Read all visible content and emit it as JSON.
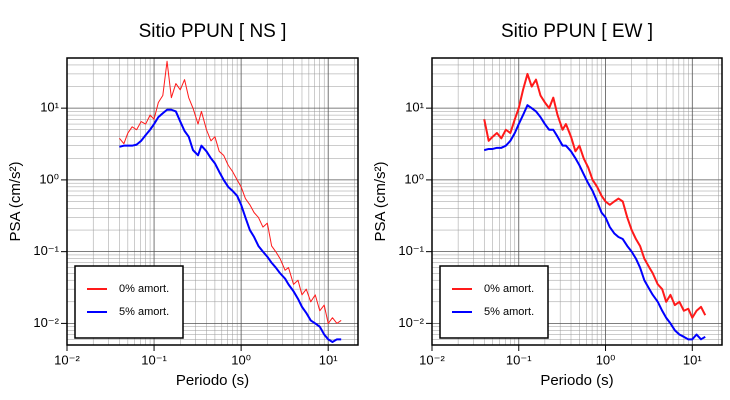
{
  "chart_data": [
    {
      "type": "line",
      "title": "Sitio PPUN [ NS ]",
      "xlabel": "Periodo (s)",
      "ylabel": "PSA (cm/s²)",
      "xscale": "log",
      "yscale": "log",
      "grid": true,
      "legend": "lower left",
      "xlim": [
        0.01,
        22
      ],
      "ylim": [
        0.005,
        50
      ],
      "xticks": [
        {
          "value": 0.01,
          "label": "10⁻²"
        },
        {
          "value": 0.1,
          "label": "10⁻¹"
        },
        {
          "value": 1,
          "label": "10⁰"
        },
        {
          "value": 10,
          "label": "10¹"
        }
      ],
      "yticks": [
        {
          "value": 0.01,
          "label": "10⁻²"
        },
        {
          "value": 0.1,
          "label": "10⁻¹"
        },
        {
          "value": 1,
          "label": "10⁰"
        },
        {
          "value": 10,
          "label": "10¹"
        }
      ],
      "x": [
        0.04,
        0.045,
        0.05,
        0.056,
        0.063,
        0.071,
        0.08,
        0.09,
        0.1,
        0.112,
        0.126,
        0.141,
        0.158,
        0.178,
        0.2,
        0.224,
        0.25,
        0.28,
        0.32,
        0.35,
        0.4,
        0.45,
        0.5,
        0.56,
        0.63,
        0.71,
        0.8,
        0.9,
        1.0,
        1.12,
        1.26,
        1.41,
        1.58,
        1.78,
        2.0,
        2.24,
        2.5,
        2.8,
        3.2,
        3.5,
        4.0,
        4.5,
        5.0,
        5.6,
        6.3,
        7.1,
        8.0,
        9.0,
        10,
        11.2,
        12.6,
        14.1
      ],
      "series": [
        {
          "name": "0% amort.",
          "color": "#ff1a1a",
          "width": 1,
          "values": [
            3.8,
            3.2,
            4.5,
            5.5,
            5,
            6.5,
            6,
            8,
            7,
            12,
            15,
            45,
            14,
            22,
            18,
            25,
            14,
            10,
            6,
            9,
            5,
            3.5,
            4,
            2.5,
            2.2,
            1.6,
            1.3,
            1.0,
            0.8,
            0.55,
            0.45,
            0.35,
            0.3,
            0.22,
            0.25,
            0.12,
            0.1,
            0.08,
            0.055,
            0.06,
            0.035,
            0.04,
            0.025,
            0.03,
            0.02,
            0.025,
            0.015,
            0.018,
            0.01,
            0.012,
            0.01,
            0.011
          ]
        },
        {
          "name": "5% amort.",
          "color": "#0000ff",
          "width": 2,
          "values": [
            2.9,
            3,
            3,
            3,
            3.1,
            3.5,
            4.2,
            5,
            6,
            7.5,
            8.5,
            9.5,
            9.5,
            9,
            6.5,
            4.8,
            4,
            2.6,
            2.2,
            3,
            2.5,
            2,
            1.7,
            1.3,
            1,
            0.8,
            0.7,
            0.6,
            0.45,
            0.3,
            0.2,
            0.16,
            0.12,
            0.1,
            0.085,
            0.07,
            0.06,
            0.05,
            0.042,
            0.035,
            0.028,
            0.022,
            0.017,
            0.014,
            0.011,
            0.01,
            0.009,
            0.007,
            0.006,
            0.0055,
            0.006,
            0.006
          ]
        }
      ]
    },
    {
      "type": "line",
      "title": "Sitio PPUN [ EW ]",
      "xlabel": "Periodo (s)",
      "ylabel": "PSA (cm/s²)",
      "xscale": "log",
      "yscale": "log",
      "grid": true,
      "legend": "lower left",
      "xlim": [
        0.01,
        22
      ],
      "ylim": [
        0.005,
        50
      ],
      "xticks": [
        {
          "value": 0.01,
          "label": "10⁻²"
        },
        {
          "value": 0.1,
          "label": "10⁻¹"
        },
        {
          "value": 1,
          "label": "10⁰"
        },
        {
          "value": 10,
          "label": "10¹"
        }
      ],
      "yticks": [
        {
          "value": 0.01,
          "label": "10⁻²"
        },
        {
          "value": 0.1,
          "label": "10⁻¹"
        },
        {
          "value": 1,
          "label": "10⁰"
        },
        {
          "value": 10,
          "label": "10¹"
        }
      ],
      "x": [
        0.04,
        0.045,
        0.05,
        0.056,
        0.063,
        0.071,
        0.08,
        0.09,
        0.1,
        0.112,
        0.126,
        0.141,
        0.158,
        0.178,
        0.2,
        0.224,
        0.25,
        0.28,
        0.32,
        0.35,
        0.4,
        0.45,
        0.5,
        0.56,
        0.63,
        0.71,
        0.8,
        0.9,
        1.0,
        1.12,
        1.26,
        1.41,
        1.58,
        1.78,
        2.0,
        2.24,
        2.5,
        2.8,
        3.2,
        3.5,
        4.0,
        4.5,
        5.0,
        5.6,
        6.3,
        7.1,
        8.0,
        9.0,
        10,
        11.2,
        12.6,
        14.1
      ],
      "series": [
        {
          "name": "0% amort.",
          "color": "#ff1a1a",
          "width": 2,
          "values": [
            7,
            3.5,
            4,
            4.5,
            3.8,
            5,
            4.5,
            7,
            10,
            18,
            30,
            20,
            25,
            15,
            12,
            10,
            14,
            8,
            5,
            6,
            4,
            2.5,
            3,
            2,
            1.5,
            1,
            0.8,
            0.6,
            0.5,
            0.45,
            0.5,
            0.55,
            0.5,
            0.3,
            0.2,
            0.15,
            0.12,
            0.08,
            0.06,
            0.05,
            0.035,
            0.03,
            0.02,
            0.025,
            0.018,
            0.02,
            0.015,
            0.016,
            0.012,
            0.015,
            0.017,
            0.013
          ]
        },
        {
          "name": "5% amort.",
          "color": "#0000ff",
          "width": 2,
          "values": [
            2.6,
            2.7,
            2.7,
            2.8,
            2.8,
            3,
            3.5,
            4.5,
            6,
            8,
            11,
            10,
            9,
            7.5,
            6,
            5,
            5,
            4,
            3,
            3,
            2.5,
            2,
            1.6,
            1.2,
            0.9,
            0.7,
            0.5,
            0.35,
            0.3,
            0.22,
            0.18,
            0.16,
            0.15,
            0.12,
            0.1,
            0.08,
            0.06,
            0.04,
            0.03,
            0.025,
            0.02,
            0.015,
            0.012,
            0.01,
            0.008,
            0.007,
            0.0065,
            0.006,
            0.006,
            0.007,
            0.006,
            0.0065
          ]
        }
      ]
    }
  ]
}
